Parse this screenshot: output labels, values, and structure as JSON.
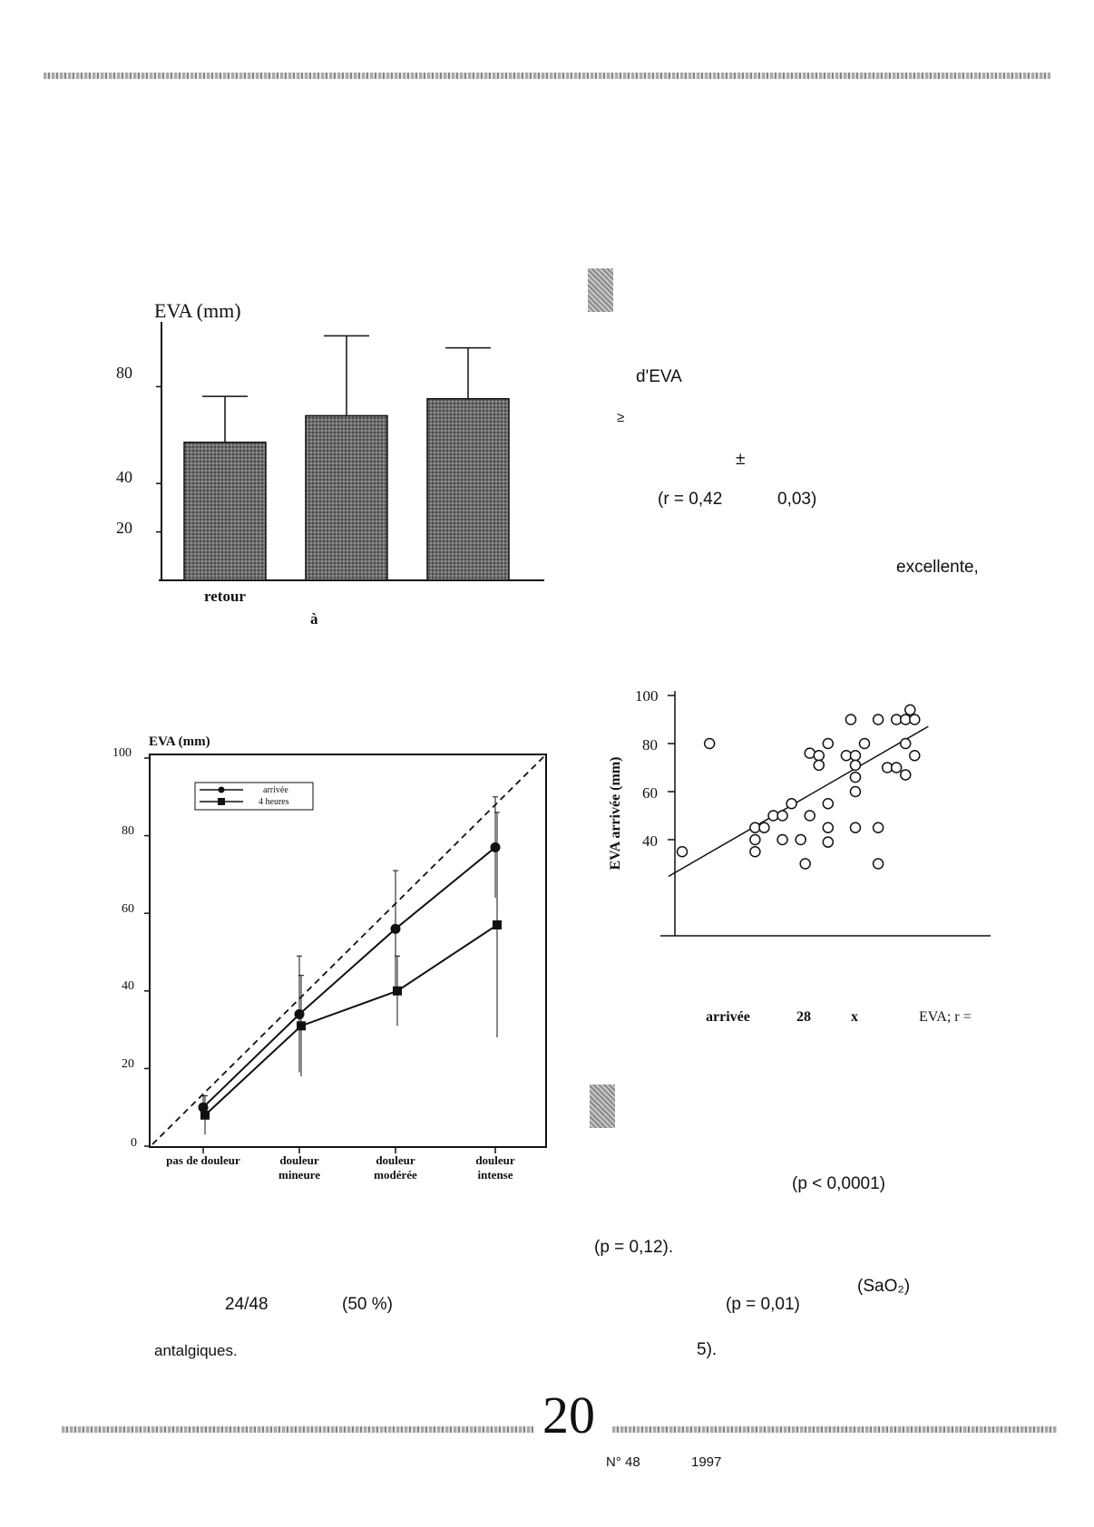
{
  "page": {
    "page_number": "20",
    "footer_issue": "N° 48",
    "footer_year": "1997"
  },
  "text_fragments": {
    "deva": "d'EVA",
    "approx": "≥",
    "plusminus": "±",
    "corr": "(r = 0,42",
    "corr_p": "0,03)",
    "excellente": "excellente,",
    "p1": "(p  <  0,0001)",
    "p2": "(p = 0,12).",
    "sao2": "(SaO₂)",
    "p3": "(p = 0,01)",
    "ratio": "24/48",
    "pct": "(50 %)",
    "antalgiques": "antalgiques.",
    "ref5": "5).",
    "scatter_caption_1": "arrivée",
    "scatter_caption_2": "28",
    "scatter_caption_3": "x",
    "scatter_caption_4": "EVA; r ="
  },
  "chart_data": [
    {
      "type": "bar",
      "title": "EVA (mm)",
      "yticks": [
        "80",
        "40",
        "20"
      ],
      "categories": [
        "retour",
        "",
        ""
      ],
      "sublabel": "à",
      "values": [
        57,
        68,
        75
      ],
      "error_upper": [
        76,
        101,
        96
      ],
      "ylim": [
        0,
        100
      ],
      "grid": false
    },
    {
      "type": "line",
      "title": "EVA (mm)",
      "ylim": [
        0,
        100
      ],
      "yticks": [
        "100",
        "80",
        "60",
        "40",
        "20",
        "0"
      ],
      "categories": [
        [
          "pas de douleur"
        ],
        [
          "douleur",
          "mineure"
        ],
        [
          "douleur",
          "modérée"
        ],
        [
          "douleur",
          "intense"
        ]
      ],
      "legend": [
        "arrivée",
        "4 heures"
      ],
      "legend_position": "top-left",
      "series": [
        {
          "name": "arrivée",
          "values": [
            10,
            34,
            56,
            77
          ],
          "err": [
            3,
            15,
            15,
            13
          ]
        },
        {
          "name": "4 heures",
          "values": [
            8,
            31,
            40,
            57
          ],
          "err": [
            5,
            13,
            9,
            29
          ]
        }
      ],
      "reference_line": "identity (dashed)",
      "grid": false
    },
    {
      "type": "scatter",
      "ylabel": "EVA arrivée (mm)",
      "ylim": [
        0,
        100
      ],
      "yticks": [
        "100",
        "80",
        "60",
        "40"
      ],
      "points": [
        [
          0,
          35
        ],
        [
          3,
          80
        ],
        [
          8,
          45
        ],
        [
          8,
          40
        ],
        [
          8,
          35
        ],
        [
          9,
          45
        ],
        [
          10,
          50
        ],
        [
          11,
          40
        ],
        [
          11,
          50
        ],
        [
          12,
          55
        ],
        [
          13,
          40
        ],
        [
          13.5,
          30
        ],
        [
          14,
          50
        ],
        [
          14,
          76
        ],
        [
          15,
          75
        ],
        [
          15,
          71
        ],
        [
          16,
          80
        ],
        [
          16,
          55
        ],
        [
          16,
          45
        ],
        [
          16,
          39
        ],
        [
          18,
          75
        ],
        [
          18.5,
          90
        ],
        [
          19,
          75
        ],
        [
          19,
          71
        ],
        [
          19,
          66
        ],
        [
          19,
          60
        ],
        [
          19,
          45
        ],
        [
          20,
          80
        ],
        [
          21.5,
          90
        ],
        [
          21.5,
          45
        ],
        [
          21.5,
          30
        ],
        [
          22.5,
          70
        ],
        [
          23.5,
          90
        ],
        [
          23.5,
          70
        ],
        [
          24.5,
          90
        ],
        [
          24.5,
          80
        ],
        [
          24.5,
          67
        ],
        [
          25,
          94
        ],
        [
          25.5,
          90
        ],
        [
          25.5,
          75
        ]
      ],
      "regression": {
        "intercept": 28,
        "slope": 2.19
      },
      "grid": false
    }
  ]
}
